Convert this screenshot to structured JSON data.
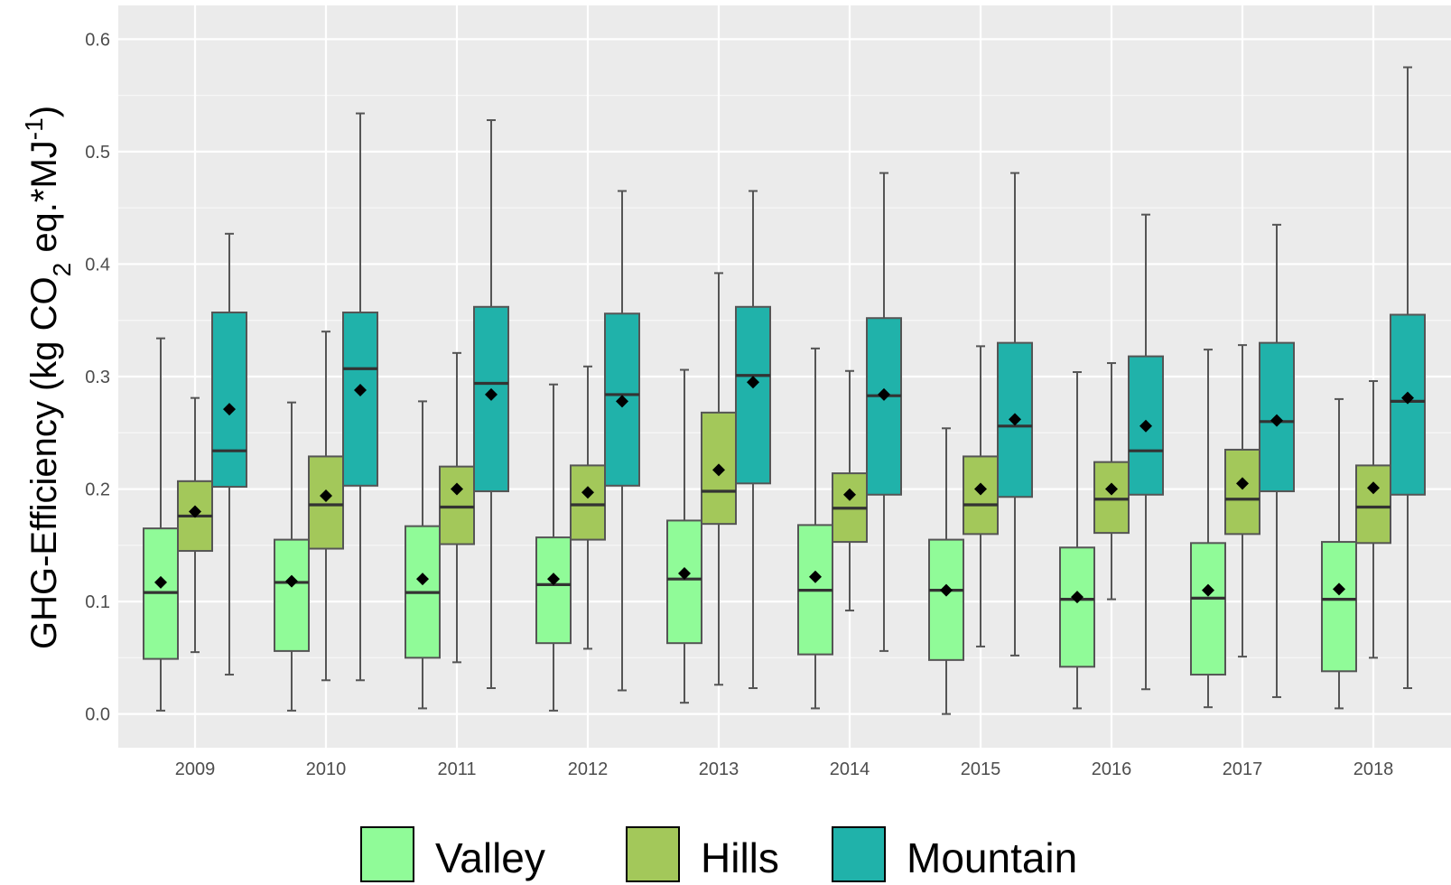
{
  "chart_data": {
    "type": "boxplot",
    "title": "",
    "xlabel": "",
    "ylabel": {
      "prefix": "GHG-Efficiency (kg CO",
      "sub": "2",
      "middle": " eq.*MJ",
      "sup": "-1",
      "suffix": ")"
    },
    "ylim": [
      -0.03,
      0.63
    ],
    "yticks": [
      "0.0",
      "0.1",
      "0.2",
      "0.3",
      "0.4",
      "0.5",
      "0.6"
    ],
    "categories": [
      "2009",
      "2010",
      "2011",
      "2012",
      "2013",
      "2014",
      "2015",
      "2016",
      "2017",
      "2018"
    ],
    "legend": {
      "position": "bottom"
    },
    "grid": true,
    "series": [
      {
        "name": "Valley",
        "color": "#90fb98",
        "whisker_low": [
          0.003,
          0.003,
          0.005,
          0.003,
          0.01,
          0.005,
          0.0,
          0.005,
          0.006,
          0.005
        ],
        "q1": [
          0.049,
          0.056,
          0.05,
          0.063,
          0.063,
          0.053,
          0.048,
          0.042,
          0.035,
          0.038
        ],
        "median": [
          0.108,
          0.117,
          0.108,
          0.115,
          0.12,
          0.11,
          0.11,
          0.102,
          0.103,
          0.102
        ],
        "mean": [
          0.117,
          0.118,
          0.12,
          0.12,
          0.125,
          0.122,
          0.11,
          0.104,
          0.11,
          0.111
        ],
        "q3": [
          0.165,
          0.155,
          0.167,
          0.157,
          0.172,
          0.168,
          0.155,
          0.148,
          0.152,
          0.153
        ],
        "whisker_high": [
          0.334,
          0.277,
          0.278,
          0.293,
          0.306,
          0.325,
          0.254,
          0.304,
          0.324,
          0.28
        ]
      },
      {
        "name": "Hills",
        "color": "#a3c85a",
        "whisker_low": [
          0.055,
          0.03,
          0.046,
          0.058,
          0.026,
          0.092,
          0.06,
          0.102,
          0.051,
          0.05
        ],
        "q1": [
          0.145,
          0.147,
          0.151,
          0.155,
          0.169,
          0.153,
          0.16,
          0.161,
          0.16,
          0.152
        ],
        "median": [
          0.176,
          0.186,
          0.184,
          0.186,
          0.198,
          0.183,
          0.186,
          0.191,
          0.191,
          0.184
        ],
        "mean": [
          0.18,
          0.194,
          0.2,
          0.197,
          0.217,
          0.195,
          0.2,
          0.2,
          0.205,
          0.201
        ],
        "q3": [
          0.207,
          0.229,
          0.22,
          0.221,
          0.268,
          0.214,
          0.229,
          0.224,
          0.235,
          0.221
        ],
        "whisker_high": [
          0.281,
          0.34,
          0.321,
          0.309,
          0.392,
          0.305,
          0.327,
          0.312,
          0.328,
          0.296
        ]
      },
      {
        "name": "Mountain",
        "color": "#20b2aa",
        "whisker_low": [
          0.035,
          0.03,
          0.023,
          0.021,
          0.023,
          0.056,
          0.052,
          0.022,
          0.015,
          0.023
        ],
        "q1": [
          0.202,
          0.203,
          0.198,
          0.203,
          0.205,
          0.195,
          0.193,
          0.195,
          0.198,
          0.195
        ],
        "median": [
          0.234,
          0.307,
          0.294,
          0.284,
          0.301,
          0.283,
          0.256,
          0.234,
          0.26,
          0.278
        ],
        "mean": [
          0.271,
          0.288,
          0.284,
          0.278,
          0.295,
          0.284,
          0.262,
          0.256,
          0.261,
          0.281
        ],
        "q3": [
          0.357,
          0.357,
          0.362,
          0.356,
          0.362,
          0.352,
          0.33,
          0.318,
          0.33,
          0.355
        ],
        "whisker_high": [
          0.427,
          0.534,
          0.528,
          0.465,
          0.465,
          0.481,
          0.481,
          0.444,
          0.435,
          0.575
        ]
      }
    ]
  }
}
